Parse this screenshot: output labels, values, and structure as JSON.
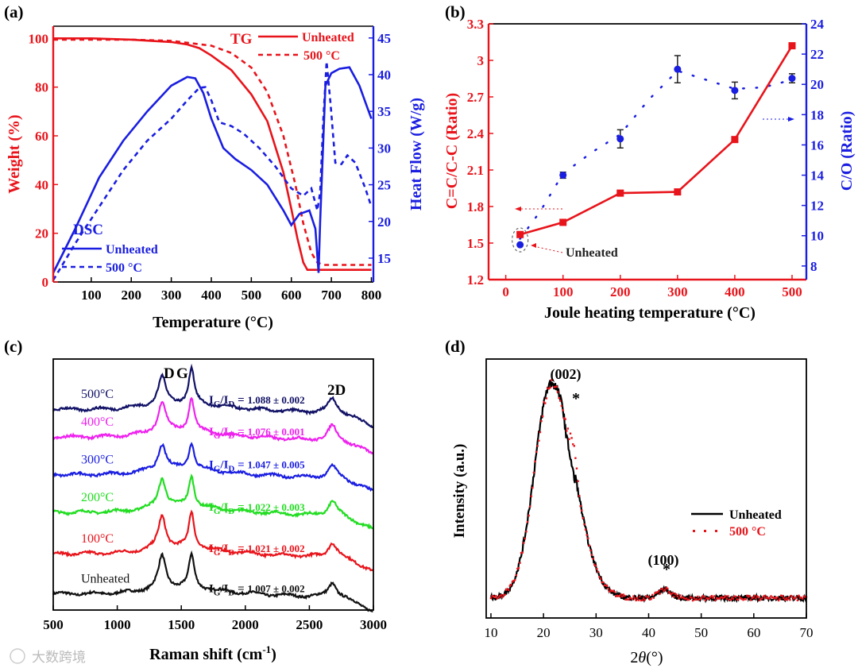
{
  "watermark": "大数跨境",
  "chart_data": [
    {
      "panel": "(a)",
      "type": "line",
      "xlabel": "Temperature (°C)",
      "ylabel_left": "Weight (%)",
      "ylabel_right": "Heat Flow (W/g)",
      "xlim": [
        5,
        805
      ],
      "ylim_left": [
        0,
        105
      ],
      "ylim_right": [
        11.75,
        46.6
      ],
      "xticks": [
        100,
        200,
        300,
        400,
        500,
        600,
        700,
        800
      ],
      "yticks_left": [
        0,
        20,
        40,
        60,
        80,
        100
      ],
      "yticks_right": [
        15,
        20,
        25,
        30,
        35,
        40,
        45
      ],
      "tg_title": "TG",
      "dsc_title": "DSC",
      "colors": {
        "tg": "#e8141b",
        "dsc": "#1a1ee0"
      },
      "series": [
        {
          "name": "Unheated",
          "group": "TG",
          "axis": "left",
          "dash": false,
          "x": [
            5,
            100,
            200,
            300,
            340,
            370,
            400,
            450,
            500,
            540,
            580,
            600,
            615,
            630,
            640,
            660,
            800
          ],
          "y": [
            100,
            100,
            99.5,
            98.5,
            97.5,
            96,
            93,
            87,
            77,
            66,
            45,
            30,
            18,
            8,
            5,
            5,
            5
          ]
        },
        {
          "name": "500 °C",
          "group": "TG",
          "axis": "left",
          "dash": true,
          "x": [
            5,
            100,
            200,
            300,
            400,
            450,
            500,
            540,
            580,
            610,
            630,
            650,
            665,
            680,
            800
          ],
          "y": [
            99.5,
            99.5,
            99.5,
            99,
            97,
            94,
            88,
            78,
            60,
            40,
            24,
            12,
            8,
            7,
            7
          ]
        },
        {
          "name": "Unheated",
          "group": "DSC",
          "axis": "right",
          "dash": false,
          "x": [
            5,
            60,
            120,
            180,
            240,
            300,
            340,
            360,
            380,
            400,
            430,
            460,
            500,
            540,
            580,
            600,
            620,
            645,
            660,
            668,
            672,
            685,
            700,
            720,
            745,
            770,
            790,
            800
          ],
          "y": [
            13,
            19,
            26,
            31,
            35,
            38.5,
            39.7,
            39.5,
            37.5,
            34,
            30,
            28.5,
            27,
            25,
            21.5,
            19.5,
            21,
            21.5,
            19,
            13,
            20,
            38.5,
            40.2,
            40.8,
            41,
            38.5,
            35.5,
            34
          ]
        },
        {
          "name": "500 °C",
          "group": "DSC",
          "axis": "right",
          "dash": true,
          "x": [
            5,
            60,
            120,
            180,
            240,
            300,
            340,
            370,
            385,
            400,
            420,
            450,
            480,
            520,
            560,
            600,
            630,
            650,
            665,
            672,
            680,
            688,
            698,
            710,
            725,
            740,
            760,
            785,
            800
          ],
          "y": [
            12,
            17,
            22,
            27,
            31,
            34,
            36.5,
            38.2,
            38.3,
            36.5,
            33.5,
            33,
            32,
            30,
            27.5,
            24.5,
            23.5,
            24.5,
            21.5,
            24,
            34,
            41.8,
            36,
            28,
            27.8,
            29,
            28,
            24.5,
            22
          ]
        }
      ]
    },
    {
      "panel": "(b)",
      "type": "line",
      "xlabel": "Joule heating temperature (°C)",
      "ylabel_left": "C=C/C-C (Ratio)",
      "ylabel_right": "C/O (Ratio)",
      "xlim": [
        -30,
        525
      ],
      "ylim_left": [
        1.2,
        3.3
      ],
      "ylim_right": [
        7.1,
        24
      ],
      "xticks": [
        0,
        100,
        200,
        300,
        400,
        500
      ],
      "yticks_left": [
        1.2,
        1.5,
        1.8,
        2.1,
        2.4,
        2.7,
        3.0,
        3.3
      ],
      "yticks_right": [
        8,
        10,
        12,
        14,
        16,
        18,
        20,
        22,
        24
      ],
      "annotation": "Unheated",
      "colors": {
        "left": "#e8141b",
        "right": "#1a1ee0"
      },
      "series": [
        {
          "name": "C=C/C-C",
          "axis": "left",
          "x": [
            25,
            100,
            200,
            300,
            400,
            500
          ],
          "y": [
            1.57,
            1.67,
            1.91,
            1.92,
            2.35,
            3.12
          ]
        },
        {
          "name": "C/O",
          "axis": "right",
          "x": [
            25,
            100,
            200,
            300,
            400,
            500
          ],
          "y": [
            9.4,
            14.0,
            16.4,
            21.0,
            19.6,
            20.4
          ],
          "err": [
            0.0,
            0.2,
            0.6,
            0.9,
            0.55,
            0.3
          ],
          "fit_x": [
            25,
            60,
            100,
            150,
            200,
            250,
            300,
            350,
            400,
            450,
            500
          ],
          "fit_y": [
            9.8,
            11.6,
            14.1,
            15.5,
            16.7,
            19.0,
            20.9,
            20.3,
            19.7,
            19.8,
            20.3
          ]
        }
      ]
    },
    {
      "panel": "(c)",
      "type": "line",
      "xlabel": "Raman shift (cm",
      "xlabel_sup": "-1",
      "xlabel_end": ")",
      "xlim": [
        500,
        3000
      ],
      "ylim": [
        0,
        100
      ],
      "xticks": [
        500,
        1000,
        1500,
        2000,
        2500,
        3000
      ],
      "peak_labels": [
        "D",
        "G",
        "2D"
      ],
      "peak_positions": [
        1350,
        1580,
        2680
      ],
      "ratio_prefix": [
        "I",
        "G",
        "/I",
        "D",
        " = "
      ],
      "series": [
        {
          "name": "Unheated",
          "color": "#111111",
          "offset": 6.5,
          "d": 13,
          "g": 13,
          "d2": 6,
          "ratio": "1.007 ± 0.002"
        },
        {
          "name": "100°C",
          "color": "#e8141b",
          "offset": 22.5,
          "d": 13,
          "g": 14,
          "d2": 6,
          "ratio": "1.021 ± 0.002"
        },
        {
          "name": "200°C",
          "color": "#22dd22",
          "offset": 39,
          "d": 11.5,
          "g": 12,
          "d2": 6,
          "ratio": "1.022 ± 0.003"
        },
        {
          "name": "300°C",
          "color": "#1a1ee0",
          "offset": 54,
          "d": 10,
          "g": 10.5,
          "d2": 5,
          "ratio": "1.047 ± 0.005"
        },
        {
          "name": "400°C",
          "color": "#ee22ee",
          "offset": 69,
          "d": 12,
          "g": 13,
          "d2": 6,
          "ratio": "1.076 ± 0.001"
        },
        {
          "name": "500°C",
          "color": "#111166",
          "offset": 80,
          "d": 11,
          "g": 14,
          "d2": 6,
          "ratio": "1.088 ± 0.002"
        }
      ]
    },
    {
      "panel": "(d)",
      "type": "line",
      "xlabel": "2θ(°)",
      "xlabel_parts": [
        "2",
        "θ",
        "(°)"
      ],
      "ylabel": "Intensity (a.u.)",
      "xlim": [
        9.1,
        70
      ],
      "ylim": [
        0,
        1.3
      ],
      "xticks": [
        10,
        20,
        30,
        40,
        50,
        60,
        70
      ],
      "peak_labels": [
        {
          "text": "(002)",
          "x": 21.5
        },
        {
          "text": "(100)",
          "x": 43
        }
      ],
      "star": "*",
      "legend_position": "right",
      "series": [
        {
          "name": "Unheated",
          "color": "#000000",
          "style": "line",
          "peak_center": 21.5,
          "peak_height": 1.08,
          "shoulder": 0.0,
          "baseline": 0.1
        },
        {
          "name": "500 °C",
          "color": "#e8141b",
          "style": "dotted",
          "peak_center": 21.5,
          "peak_height": 1.07,
          "shoulder": 0.12,
          "baseline": 0.1
        }
      ]
    }
  ]
}
